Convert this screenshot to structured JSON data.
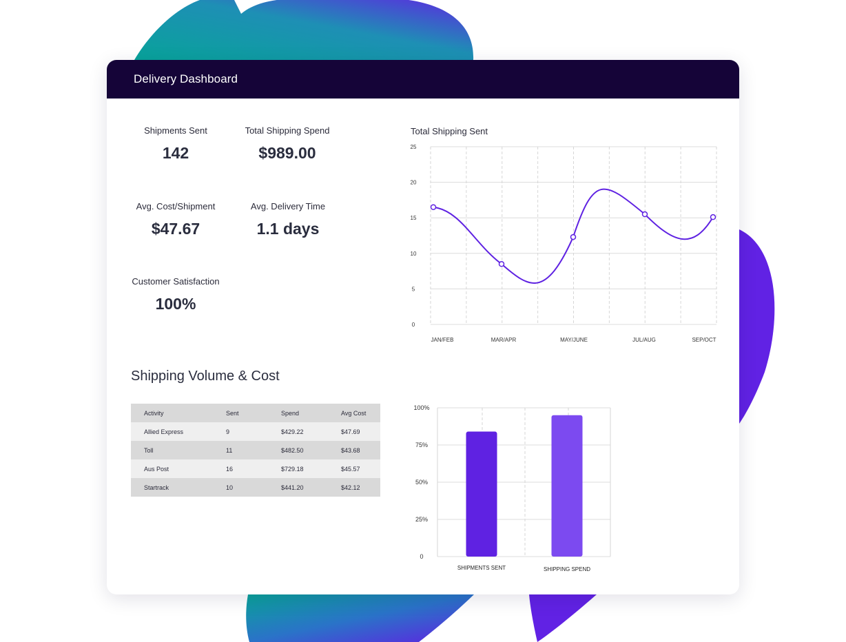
{
  "dashboard": {
    "title": "Delivery Dashboard"
  },
  "stats": [
    {
      "label": "Shipments Sent",
      "value": "142"
    },
    {
      "label": "Total Shipping Spend",
      "value": "$989.00"
    },
    {
      "label": "Avg. Cost/Shipment",
      "value": "$47.67"
    },
    {
      "label": "Avg. Delivery Time",
      "value": "1.1 days"
    },
    {
      "label": "Customer Satisfaction",
      "value": "100%"
    }
  ],
  "volume": {
    "title": "Shipping Volume & Cost",
    "headers": [
      "Activity",
      "Sent",
      "Spend",
      "Avg Cost"
    ],
    "rows": [
      [
        "Allied Express",
        "9",
        "$429.22",
        "$47.69"
      ],
      [
        "Toll",
        "11",
        "$482.50",
        "$43.68"
      ],
      [
        "Aus Post",
        "16",
        "$729.18",
        "$45.57"
      ],
      [
        "Startrack",
        "10",
        "$441.20",
        "$42.12"
      ]
    ]
  },
  "colors": {
    "header": "#150438",
    "accent": "#5f22e2",
    "accent_light": "#7c4af0",
    "teal": "#0aa39a"
  },
  "chart_data": [
    {
      "type": "line",
      "title": "Total Shipping Sent",
      "x": [
        "JAN/FEB",
        "MAR/APR",
        "MAY/JUNE",
        "JUL/AUG",
        "SEP/OCT"
      ],
      "series": [
        {
          "values": [
            16.5,
            8.5,
            12.3,
            15.5,
            15.1
          ]
        }
      ],
      "ylim": [
        0,
        25
      ],
      "yticks": [
        "0",
        "5",
        "10",
        "15",
        "20",
        "25"
      ],
      "grid": true
    },
    {
      "type": "bar",
      "categories": [
        "SHIPMENTS SENT",
        "SHIPPING SPEND"
      ],
      "values": [
        84,
        95
      ],
      "ylim": [
        0,
        100
      ],
      "yticks": [
        "0",
        "25%",
        "50%",
        "75%",
        "100%"
      ],
      "grid": true
    }
  ]
}
